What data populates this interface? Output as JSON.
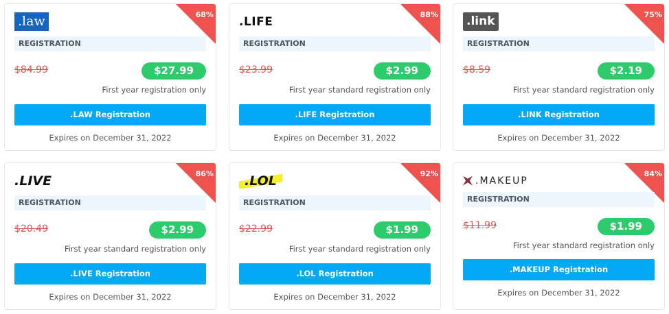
{
  "cards": [
    {
      "logo": ".law",
      "discount": "68%",
      "section": "REGISTRATION",
      "old_price": "$84.99",
      "price": "$27.99",
      "note": "First year registration only",
      "button": ".LAW Registration",
      "expires": "Expires on December 31, 2022"
    },
    {
      "logo": ".LIFE",
      "discount": "88%",
      "section": "REGISTRATION",
      "old_price": "$23.99",
      "price": "$2.99",
      "note": "First year standard registration only",
      "button": ".LIFE Registration",
      "expires": "Expires on December 31, 2022"
    },
    {
      "logo": ".link",
      "discount": "75%",
      "section": "REGISTRATION",
      "old_price": "$8.59",
      "price": "$2.19",
      "note": "First year standard registration only",
      "button": ".LINK Registration",
      "expires": "Expires on December 31, 2022"
    },
    {
      "logo": ".LIVE",
      "discount": "86%",
      "section": "REGISTRATION",
      "old_price": "$20.49",
      "price": "$2.99",
      "note": "First year standard registration only",
      "button": ".LIVE Registration",
      "expires": "Expires on December 31, 2022"
    },
    {
      "logo": ".LOL",
      "discount": "92%",
      "section": "REGISTRATION",
      "old_price": "$22.99",
      "price": "$1.99",
      "note": "First year standard registration only",
      "button": ".LOL Registration",
      "expires": "Expires on December 31, 2022"
    },
    {
      "logo": ".MAKEUP",
      "discount": "84%",
      "section": "REGISTRATION",
      "old_price": "$11.99",
      "price": "$1.99",
      "note": "First year standard registration only",
      "button": ".MAKEUP Registration",
      "expires": "Expires on December 31, 2022"
    }
  ],
  "colors": {
    "ribbon": "#ef5350",
    "price": "#2dcb6c",
    "button": "#03a9f4",
    "old_price": "#e55353"
  }
}
